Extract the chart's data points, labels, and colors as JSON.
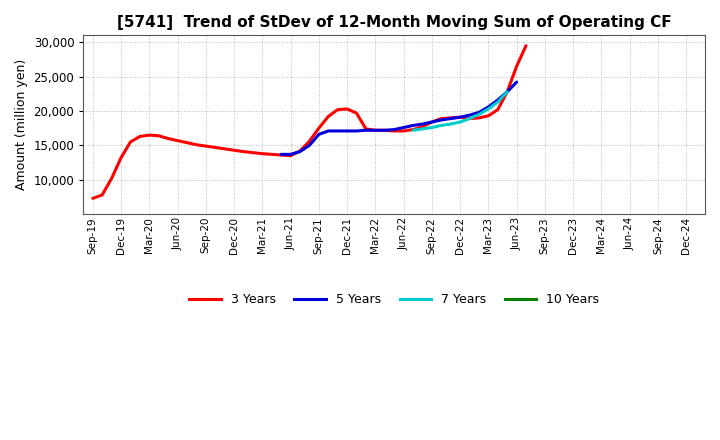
{
  "title": "[5741]  Trend of StDev of 12-Month Moving Sum of Operating CF",
  "ylabel": "Amount (million yen)",
  "ylim": [
    5000,
    31000
  ],
  "yticks": [
    10000,
    15000,
    20000,
    25000,
    30000
  ],
  "background_color": "#ffffff",
  "grid_color": "#aaaaaa",
  "series": {
    "3 Years": {
      "color": "#ff0000",
      "x": [
        0,
        1,
        2,
        3,
        4,
        5,
        6,
        7,
        8,
        9,
        10,
        11,
        12,
        13,
        14,
        15,
        16,
        17,
        18,
        19,
        20,
        21,
        22,
        23,
        24,
        25,
        26,
        27,
        28,
        29,
        30,
        31,
        32,
        33,
        34,
        35,
        36,
        37,
        38,
        39,
        40,
        41,
        42,
        43,
        44,
        45,
        46
      ],
      "y": [
        7300,
        7800,
        10200,
        13200,
        15500,
        16300,
        16500,
        16400,
        16000,
        15700,
        15400,
        15100,
        14900,
        14700,
        14500,
        14300,
        14100,
        13950,
        13800,
        13700,
        13600,
        13500,
        14200,
        15600,
        17500,
        19200,
        20200,
        20300,
        19700,
        17400,
        17200,
        17200,
        17100,
        17100,
        17300,
        17700,
        18400,
        18900,
        19000,
        19100,
        18900,
        19000,
        19300,
        20200,
        22800,
        26500,
        29500
      ]
    },
    "5 Years": {
      "color": "#0000dd",
      "x": [
        20,
        21,
        22,
        23,
        24,
        25,
        26,
        27,
        28,
        29,
        30,
        31,
        32,
        33,
        34,
        35,
        36,
        37,
        38,
        39,
        40,
        41,
        42,
        43,
        44,
        45
      ],
      "y": [
        13700,
        13700,
        14100,
        15000,
        16600,
        17100,
        17100,
        17100,
        17100,
        17200,
        17200,
        17200,
        17300,
        17600,
        17900,
        18100,
        18400,
        18700,
        18900,
        19100,
        19400,
        19800,
        20600,
        21600,
        22800,
        24200
      ]
    },
    "7 Years": {
      "color": "#00cccc",
      "x": [
        34,
        35,
        36,
        37,
        38,
        39,
        40,
        41,
        42,
        43,
        44,
        45
      ],
      "y": [
        17200,
        17400,
        17600,
        17900,
        18100,
        18400,
        18900,
        19500,
        20300,
        21300,
        22800,
        null
      ]
    },
    "10 Years": {
      "color": "#008000",
      "x": [],
      "y": []
    }
  },
  "xtick_labels": [
    "Sep-19",
    "Dec-19",
    "Mar-20",
    "Jun-20",
    "Sep-20",
    "Dec-20",
    "Mar-21",
    "Jun-21",
    "Sep-21",
    "Dec-21",
    "Mar-22",
    "Jun-22",
    "Sep-22",
    "Dec-22",
    "Mar-23",
    "Jun-23",
    "Sep-23",
    "Dec-23",
    "Mar-24",
    "Jun-24",
    "Sep-24",
    "Dec-24"
  ],
  "xtick_positions": [
    0,
    3,
    6,
    9,
    12,
    15,
    18,
    21,
    24,
    27,
    30,
    33,
    36,
    39,
    42,
    45,
    48,
    51,
    54,
    57,
    60,
    63
  ],
  "xlim": [
    -1,
    65
  ],
  "legend_labels": [
    "3 Years",
    "5 Years",
    "7 Years",
    "10 Years"
  ],
  "legend_colors": [
    "#ff0000",
    "#0000dd",
    "#00cccc",
    "#008000"
  ]
}
